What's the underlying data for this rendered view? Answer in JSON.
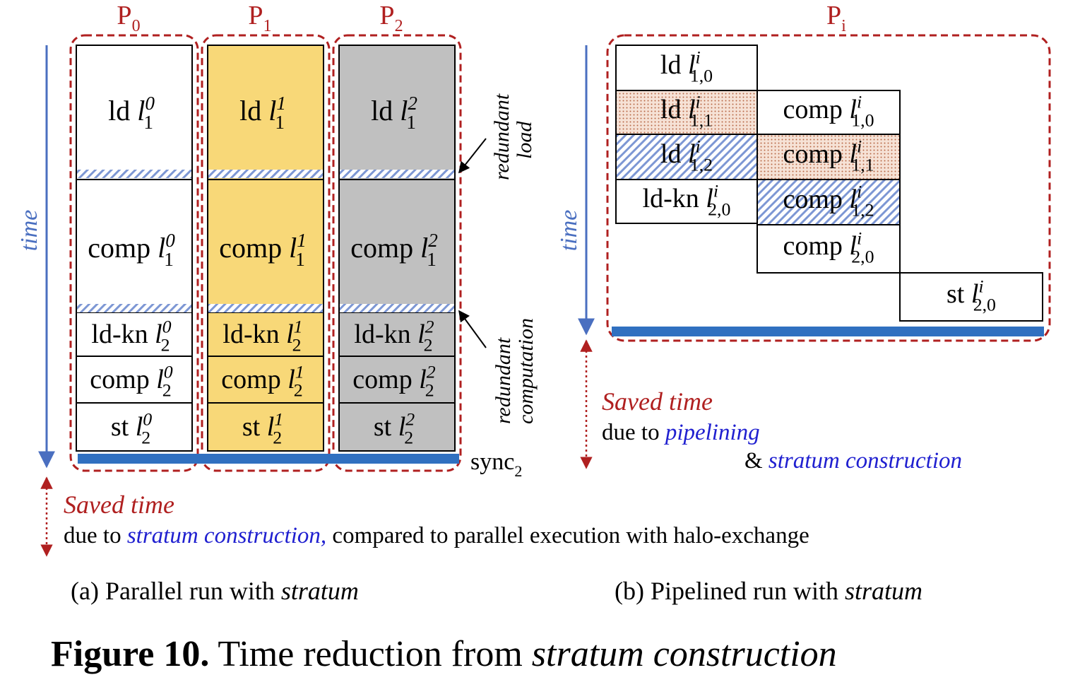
{
  "panel_a": {
    "processors": [
      {
        "label": "P",
        "sub": "0",
        "fill": "#ffffff",
        "blocks": [
          {
            "op": "ld",
            "var": "l",
            "sup": "0",
            "sub": "1"
          },
          {
            "op": "comp",
            "var": "l",
            "sup": "0",
            "sub": "1"
          },
          {
            "op": "ld-kn",
            "var": "l",
            "sup": "0",
            "sub": "2"
          },
          {
            "op": "comp",
            "var": "l",
            "sup": "0",
            "sub": "2"
          },
          {
            "op": "st",
            "var": "l",
            "sup": "0",
            "sub": "2"
          }
        ]
      },
      {
        "label": "P",
        "sub": "1",
        "fill": "#f8d878",
        "blocks": [
          {
            "op": "ld",
            "var": "l",
            "sup": "1",
            "sub": "1"
          },
          {
            "op": "comp",
            "var": "l",
            "sup": "1",
            "sub": "1"
          },
          {
            "op": "ld-kn",
            "var": "l",
            "sup": "1",
            "sub": "2"
          },
          {
            "op": "comp",
            "var": "l",
            "sup": "1",
            "sub": "2"
          },
          {
            "op": "st",
            "var": "l",
            "sup": "1",
            "sub": "2"
          }
        ]
      },
      {
        "label": "P",
        "sub": "2",
        "fill": "#c0c0c0",
        "blocks": [
          {
            "op": "ld",
            "var": "l",
            "sup": "2",
            "sub": "1"
          },
          {
            "op": "comp",
            "var": "l",
            "sup": "2",
            "sub": "1"
          },
          {
            "op": "ld-kn",
            "var": "l",
            "sup": "2",
            "sub": "2"
          },
          {
            "op": "comp",
            "var": "l",
            "sup": "2",
            "sub": "2"
          },
          {
            "op": "st",
            "var": "l",
            "sup": "2",
            "sub": "2"
          }
        ]
      }
    ],
    "time_label": "time",
    "annotation_load_1": "redundant",
    "annotation_load_2": "load",
    "annotation_comp_1": "redundant",
    "annotation_comp_2": "computation",
    "sync_label": "sync",
    "sync_sub": "2",
    "saved_time": "Saved time",
    "saved_due": "due to ",
    "saved_reason": "stratum construction,",
    "saved_rest": " compared to parallel execution with halo-exchange",
    "caption_prefix": "(a) Parallel run with ",
    "caption_em": "stratum"
  },
  "panel_b": {
    "processor_label": "P",
    "processor_sub": "i",
    "time_label": "time",
    "blocks": [
      {
        "op": "ld",
        "var": "l",
        "sup": "i",
        "sub": "1,0",
        "style": "plain"
      },
      {
        "op": "ld",
        "var": "l",
        "sup": "i",
        "sub": "1,1",
        "style": "dotted"
      },
      {
        "op": "ld",
        "var": "l",
        "sup": "i",
        "sub": "1,2",
        "style": "hatched"
      },
      {
        "op": "ld-kn",
        "var": "l",
        "sup": "i",
        "sub": "2,0",
        "style": "plain"
      },
      {
        "op": "comp",
        "var": "l",
        "sup": "i",
        "sub": "1,0",
        "style": "plain"
      },
      {
        "op": "comp",
        "var": "l",
        "sup": "i",
        "sub": "1,1",
        "style": "dotted"
      },
      {
        "op": "comp",
        "var": "l",
        "sup": "i",
        "sub": "1,2",
        "style": "hatched"
      },
      {
        "op": "comp",
        "var": "l",
        "sup": "i",
        "sub": "2,0",
        "style": "plain"
      },
      {
        "op": "st",
        "var": "l",
        "sup": "i",
        "sub": "2,0",
        "style": "plain"
      }
    ],
    "saved_time": "Saved time",
    "saved_due": "due to ",
    "saved_reason_1": "pipelining",
    "saved_amp": "& ",
    "saved_reason_2": "stratum construction",
    "caption_prefix": "(b) Pipelined run with ",
    "caption_em": "stratum"
  },
  "figure_caption": {
    "number": "Figure 10.",
    "text": " Time reduction from ",
    "em": "stratum construction"
  },
  "colors": {
    "dashed_border": "#b02020",
    "time_axis": "#4a6fc0",
    "sync_bar": "#3070c0",
    "saved_red": "#b02020",
    "reason_blue": "#2020d0",
    "hatch": "#6f8fd0",
    "dot": "#c07050"
  }
}
